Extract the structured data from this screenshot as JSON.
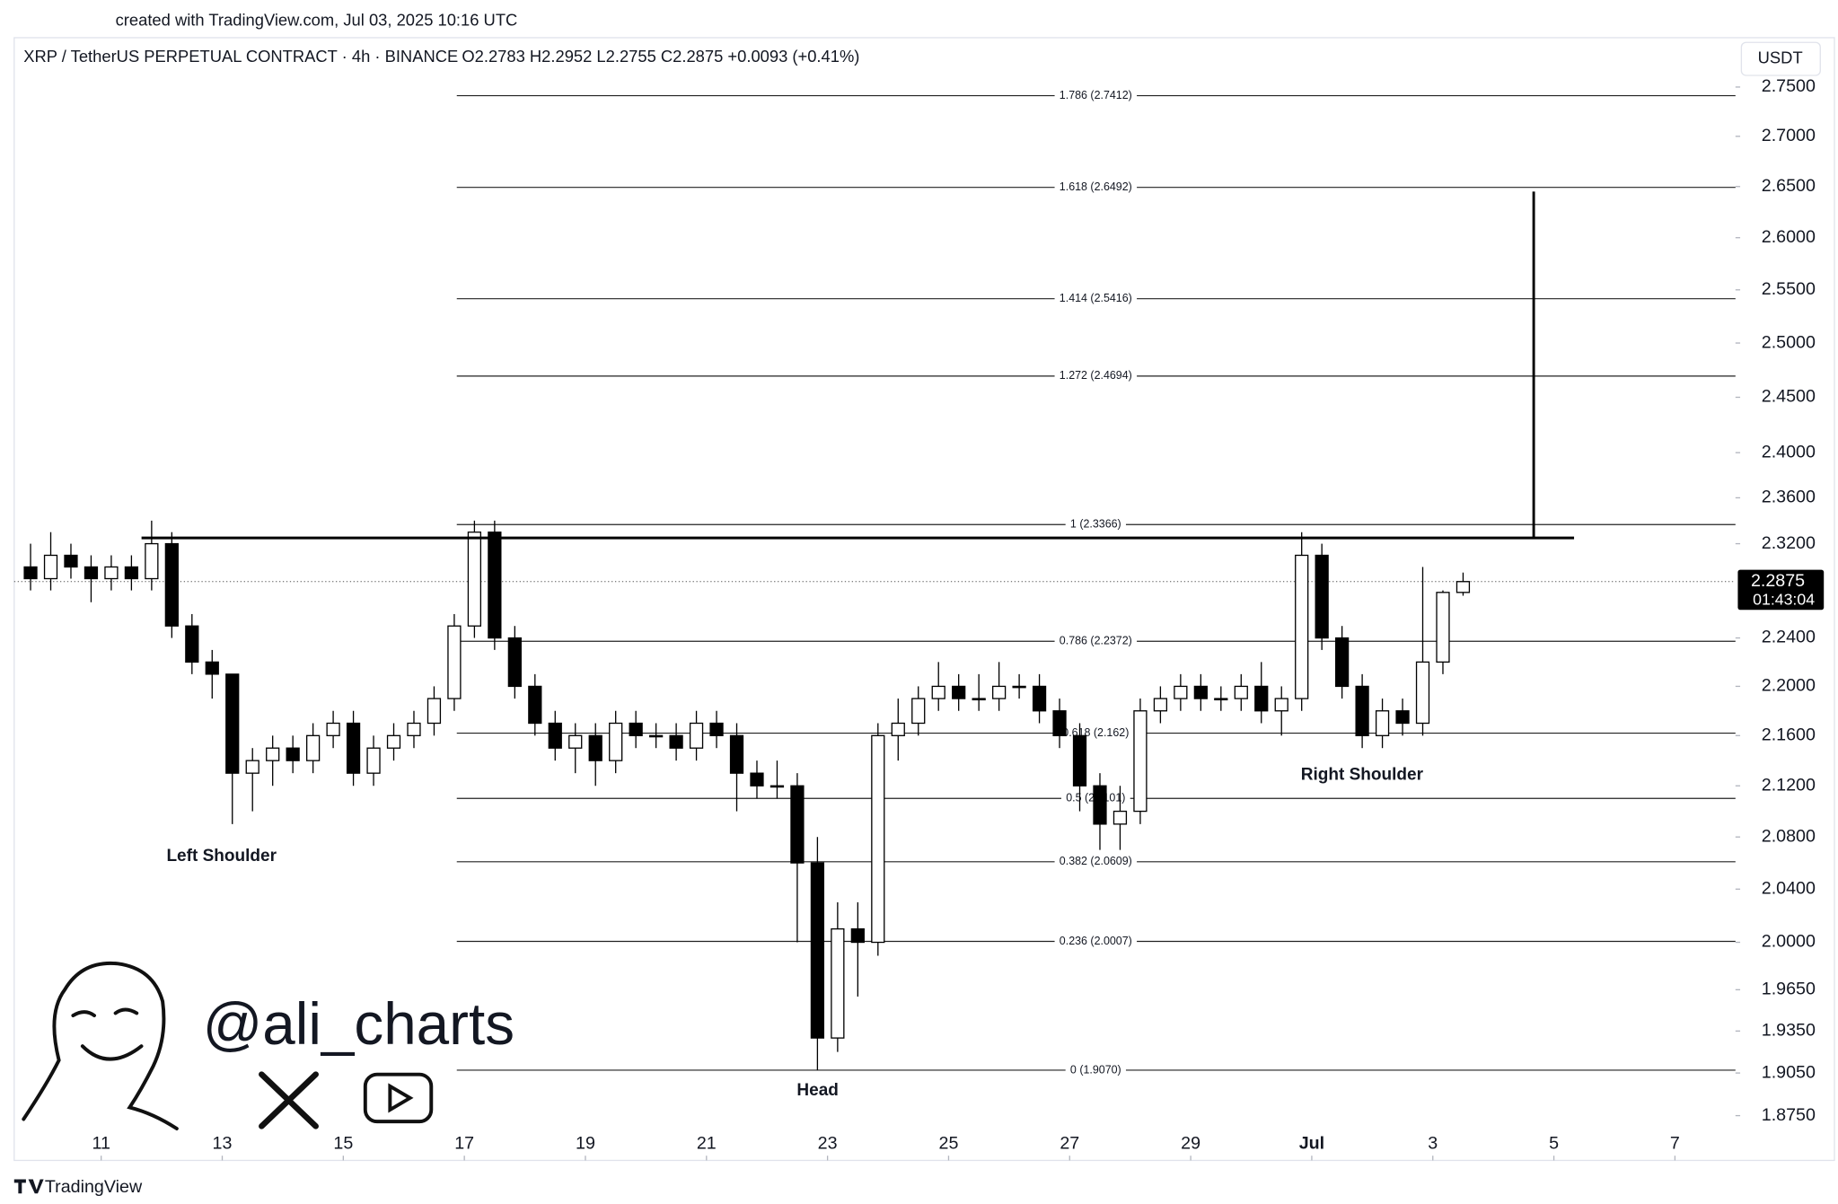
{
  "chart_data": {
    "type": "candlestick",
    "credit": "created with TradingView.com, Jul 03, 2025 10:16 UTC",
    "title": "XRP / TetherUS PERPETUAL CONTRACT · 4h · BINANCE",
    "ohlc_text": "O2.2783  H2.2952  L2.2755  C2.2875  +0.0093 (+0.41%)",
    "currency": "USDT",
    "countdown": "01:43:04",
    "brand": "TradingView",
    "watermark": "@ali_charts",
    "log_scale": true,
    "ylim": [
      1.844,
      2.801
    ],
    "yticks": [
      {
        "value": 2.75,
        "label": "2.7500"
      },
      {
        "value": 2.7,
        "label": "2.7000"
      },
      {
        "value": 2.65,
        "label": "2.6500"
      },
      {
        "value": 2.6,
        "label": "2.6000"
      },
      {
        "value": 2.55,
        "label": "2.5500"
      },
      {
        "value": 2.5,
        "label": "2.5000"
      },
      {
        "value": 2.45,
        "label": "2.4500"
      },
      {
        "value": 2.4,
        "label": "2.4000"
      },
      {
        "value": 2.36,
        "label": "2.3600"
      },
      {
        "value": 2.32,
        "label": "2.3200"
      },
      {
        "value": 2.24,
        "label": "2.2400"
      },
      {
        "value": 2.2,
        "label": "2.2000"
      },
      {
        "value": 2.16,
        "label": "2.1600"
      },
      {
        "value": 2.12,
        "label": "2.1200"
      },
      {
        "value": 2.08,
        "label": "2.0800"
      },
      {
        "value": 2.04,
        "label": "2.0400"
      },
      {
        "value": 2,
        "label": "2.0000"
      },
      {
        "value": 1.965,
        "label": "1.9650"
      },
      {
        "value": 1.935,
        "label": "1.9350"
      },
      {
        "value": 1.905,
        "label": "1.9050"
      },
      {
        "value": 1.875,
        "label": "1.8750"
      }
    ],
    "xlim": [
      "2025-06-09T13:30",
      "2025-07-08T00:00"
    ],
    "xticks": [
      {
        "value": "2025-06-11",
        "label": "11"
      },
      {
        "value": "2025-06-13",
        "label": "13"
      },
      {
        "value": "2025-06-15",
        "label": "15"
      },
      {
        "value": "2025-06-17",
        "label": "17"
      },
      {
        "value": "2025-06-19",
        "label": "19"
      },
      {
        "value": "2025-06-21",
        "label": "21"
      },
      {
        "value": "2025-06-23",
        "label": "23"
      },
      {
        "value": "2025-06-25",
        "label": "25"
      },
      {
        "value": "2025-06-27",
        "label": "27"
      },
      {
        "value": "2025-06-29",
        "label": "29"
      },
      {
        "value": "2025-07-01",
        "label": "Jul"
      },
      {
        "value": "2025-07-03",
        "label": "3"
      },
      {
        "value": "2025-07-05",
        "label": "5"
      },
      {
        "value": "2025-07-07",
        "label": "7"
      }
    ],
    "candle_hours": 8,
    "up_color": "#ffffff",
    "down_color": "#000000",
    "edge_color": "#000000",
    "x": [
      "2025-06-09T16:00",
      "2025-06-10T00:00",
      "2025-06-10T08:00",
      "2025-06-10T16:00",
      "2025-06-11T00:00",
      "2025-06-11T08:00",
      "2025-06-11T16:00",
      "2025-06-12T00:00",
      "2025-06-12T08:00",
      "2025-06-12T16:00",
      "2025-06-13T00:00",
      "2025-06-13T08:00",
      "2025-06-13T16:00",
      "2025-06-14T00:00",
      "2025-06-14T08:00",
      "2025-06-14T16:00",
      "2025-06-15T00:00",
      "2025-06-15T08:00",
      "2025-06-15T16:00",
      "2025-06-16T00:00",
      "2025-06-16T08:00",
      "2025-06-16T16:00",
      "2025-06-17T00:00",
      "2025-06-17T08:00",
      "2025-06-17T16:00",
      "2025-06-18T00:00",
      "2025-06-18T08:00",
      "2025-06-18T16:00",
      "2025-06-19T00:00",
      "2025-06-19T08:00",
      "2025-06-19T16:00",
      "2025-06-20T00:00",
      "2025-06-20T08:00",
      "2025-06-20T16:00",
      "2025-06-21T00:00",
      "2025-06-21T08:00",
      "2025-06-21T16:00",
      "2025-06-22T00:00",
      "2025-06-22T08:00",
      "2025-06-22T16:00",
      "2025-06-23T00:00",
      "2025-06-23T08:00",
      "2025-06-23T16:00",
      "2025-06-24T00:00",
      "2025-06-24T08:00",
      "2025-06-24T16:00",
      "2025-06-25T00:00",
      "2025-06-25T08:00",
      "2025-06-25T16:00",
      "2025-06-26T00:00",
      "2025-06-26T08:00",
      "2025-06-26T16:00",
      "2025-06-27T00:00",
      "2025-06-27T08:00",
      "2025-06-27T16:00",
      "2025-06-28T00:00",
      "2025-06-28T08:00",
      "2025-06-28T16:00",
      "2025-06-29T00:00",
      "2025-06-29T08:00",
      "2025-06-29T16:00",
      "2025-06-30T00:00",
      "2025-06-30T08:00",
      "2025-06-30T16:00",
      "2025-07-01T00:00",
      "2025-07-01T08:00",
      "2025-07-01T16:00",
      "2025-07-02T00:00",
      "2025-07-02T08:00",
      "2025-07-02T16:00",
      "2025-07-03T00:00",
      "2025-07-03T08:00"
    ],
    "open": [
      2.3,
      2.29,
      2.31,
      2.3,
      2.29,
      2.3,
      2.29,
      2.32,
      2.25,
      2.22,
      2.21,
      2.13,
      2.14,
      2.15,
      2.14,
      2.16,
      2.17,
      2.13,
      2.15,
      2.16,
      2.17,
      2.19,
      2.25,
      2.33,
      2.24,
      2.2,
      2.17,
      2.15,
      2.16,
      2.14,
      2.17,
      2.16,
      2.16,
      2.15,
      2.17,
      2.16,
      2.13,
      2.12,
      2.12,
      2.06,
      1.93,
      2.01,
      2.0,
      2.16,
      2.17,
      2.19,
      2.2,
      2.19,
      2.19,
      2.2,
      2.2,
      2.18,
      2.16,
      2.12,
      2.09,
      2.1,
      2.18,
      2.19,
      2.2,
      2.19,
      2.19,
      2.2,
      2.18,
      2.19,
      2.31,
      2.24,
      2.2,
      2.16,
      2.18,
      2.17,
      2.22,
      2.2783
    ],
    "high": [
      2.32,
      2.33,
      2.32,
      2.31,
      2.31,
      2.31,
      2.34,
      2.33,
      2.26,
      2.23,
      2.21,
      2.15,
      2.16,
      2.16,
      2.17,
      2.18,
      2.18,
      2.16,
      2.17,
      2.18,
      2.2,
      2.26,
      2.34,
      2.34,
      2.25,
      2.21,
      2.18,
      2.17,
      2.17,
      2.18,
      2.18,
      2.17,
      2.17,
      2.18,
      2.18,
      2.17,
      2.14,
      2.14,
      2.13,
      2.08,
      2.03,
      2.03,
      2.17,
      2.19,
      2.2,
      2.22,
      2.21,
      2.21,
      2.22,
      2.21,
      2.21,
      2.19,
      2.17,
      2.13,
      2.12,
      2.19,
      2.2,
      2.21,
      2.21,
      2.2,
      2.21,
      2.22,
      2.2,
      2.33,
      2.32,
      2.25,
      2.21,
      2.19,
      2.19,
      2.3,
      2.28,
      2.2952
    ],
    "low": [
      2.28,
      2.28,
      2.29,
      2.27,
      2.28,
      2.28,
      2.28,
      2.24,
      2.21,
      2.19,
      2.09,
      2.1,
      2.12,
      2.13,
      2.13,
      2.15,
      2.12,
      2.12,
      2.14,
      2.15,
      2.16,
      2.18,
      2.24,
      2.23,
      2.19,
      2.16,
      2.14,
      2.13,
      2.12,
      2.13,
      2.15,
      2.15,
      2.14,
      2.14,
      2.15,
      2.1,
      2.11,
      2.11,
      2.0,
      1.907,
      1.92,
      1.96,
      1.99,
      2.14,
      2.16,
      2.18,
      2.18,
      2.18,
      2.18,
      2.19,
      2.17,
      2.15,
      2.1,
      2.07,
      2.07,
      2.09,
      2.17,
      2.18,
      2.18,
      2.18,
      2.18,
      2.17,
      2.16,
      2.18,
      2.23,
      2.19,
      2.15,
      2.15,
      2.16,
      2.16,
      2.21,
      2.2755
    ],
    "close": [
      2.29,
      2.31,
      2.3,
      2.29,
      2.3,
      2.29,
      2.32,
      2.25,
      2.22,
      2.21,
      2.13,
      2.14,
      2.15,
      2.14,
      2.16,
      2.17,
      2.13,
      2.15,
      2.16,
      2.17,
      2.19,
      2.25,
      2.33,
      2.24,
      2.2,
      2.17,
      2.15,
      2.16,
      2.14,
      2.17,
      2.16,
      2.16,
      2.15,
      2.17,
      2.16,
      2.13,
      2.12,
      2.12,
      2.06,
      1.93,
      2.01,
      2.0,
      2.16,
      2.17,
      2.19,
      2.2,
      2.19,
      2.19,
      2.2,
      2.2,
      2.18,
      2.16,
      2.12,
      2.09,
      2.1,
      2.18,
      2.19,
      2.2,
      2.19,
      2.19,
      2.2,
      2.18,
      2.19,
      2.31,
      2.24,
      2.2,
      2.16,
      2.18,
      2.17,
      2.22,
      2.2783,
      2.2875
    ],
    "fib_start": "2025-06-16T21:00",
    "fib_levels": [
      {
        "value": 2.7412,
        "label": "1.786 (2.7412)"
      },
      {
        "value": 2.6492,
        "label": "1.618 (2.6492)"
      },
      {
        "value": 2.5416,
        "label": "1.414 (2.5416)"
      },
      {
        "value": 2.4694,
        "label": "1.272 (2.4694)"
      },
      {
        "value": 2.3366,
        "label": "1 (2.3366)"
      },
      {
        "value": 2.2372,
        "label": "0.786 (2.2372)"
      },
      {
        "value": 2.162,
        "label": "0.618 (2.162)"
      },
      {
        "value": 2.1101,
        "label": "0.5 (2.1101)"
      },
      {
        "value": 2.0609,
        "label": "0.382 (2.0609)"
      },
      {
        "value": 2.0007,
        "label": "0.236 (2.0007)"
      },
      {
        "value": 1.907,
        "label": "0 (1.9070)"
      }
    ],
    "neckline": {
      "value": 2.325,
      "start": "2025-06-11T16:00",
      "end": "2025-07-05T08:00"
    },
    "target": {
      "x": "2025-07-04T16:00",
      "from": 2.325,
      "to": 2.645
    },
    "annotations": [
      "Left Shoulder",
      "Head",
      "Right Shoulder"
    ]
  }
}
